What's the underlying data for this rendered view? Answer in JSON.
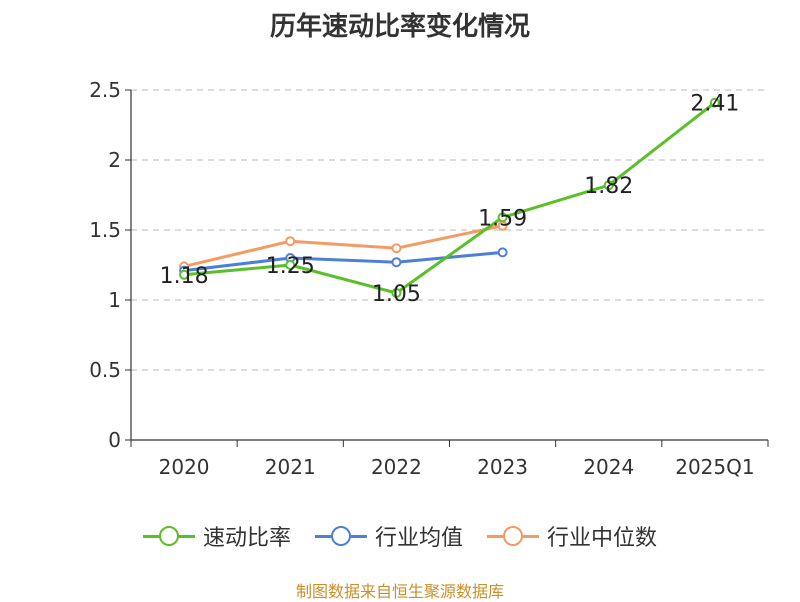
{
  "chart_data": {
    "type": "line",
    "title": "历年速动比率变化情况",
    "categories": [
      "2020",
      "2021",
      "2022",
      "2023",
      "2024",
      "2025Q1"
    ],
    "ylim": [
      0,
      2.5
    ],
    "yticks": [
      0,
      0.5,
      1,
      1.5,
      2,
      2.5
    ],
    "ytick_labels": [
      "0",
      "0.5",
      "1",
      "1.5",
      "2",
      "2.5"
    ],
    "grid": true,
    "legend_position": "bottom",
    "series": [
      {
        "name": "速动比率",
        "color": "#5bbf2a",
        "values": [
          1.18,
          1.25,
          1.05,
          1.59,
          1.82,
          2.41
        ],
        "labels": [
          "1.18",
          "1.25",
          "1.05",
          "1.59",
          "1.82",
          "2.41"
        ]
      },
      {
        "name": "行业均值",
        "color": "#4e7fd8",
        "values": [
          1.21,
          1.3,
          1.27,
          1.34,
          null,
          null
        ]
      },
      {
        "name": "行业中位数",
        "color": "#f59a62",
        "values": [
          1.24,
          1.42,
          1.37,
          1.53,
          null,
          null
        ]
      }
    ]
  },
  "source": "制图数据来自恒生聚源数据库"
}
